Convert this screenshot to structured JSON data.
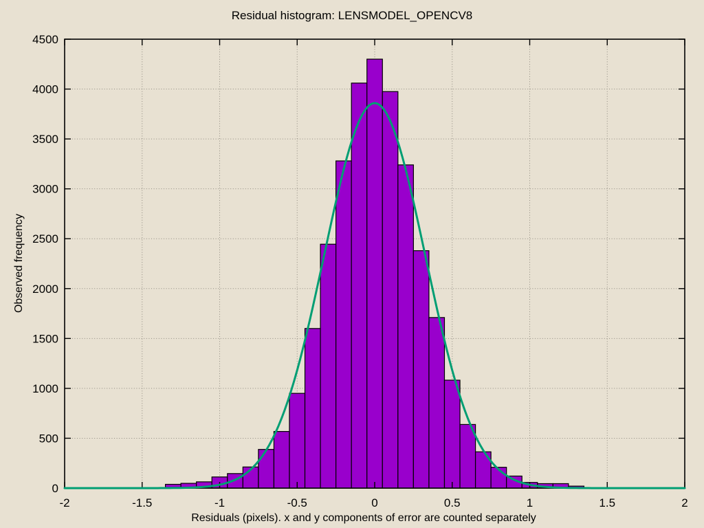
{
  "chart_data": {
    "type": "bar",
    "subtype": "histogram-with-gaussian-fit",
    "title": "Residual histogram: LENSMODEL_OPENCV8",
    "xlabel": "Residuals (pixels). x and y components of error are counted separately",
    "ylabel": "Observed frequency",
    "xlim": [
      -2,
      2
    ],
    "ylim": [
      0,
      4500
    ],
    "grid": true,
    "legend": false,
    "bin_width": 0.1,
    "bin_centers": [
      -1.3,
      -1.2,
      -1.1,
      -1.0,
      -0.9,
      -0.8,
      -0.7,
      -0.6,
      -0.5,
      -0.4,
      -0.3,
      -0.2,
      -0.1,
      0.0,
      0.1,
      0.2,
      0.3,
      0.4,
      0.5,
      0.6,
      0.7,
      0.8,
      0.9,
      1.0,
      1.1,
      1.2,
      1.3
    ],
    "frequencies": [
      38,
      48,
      63,
      112,
      146,
      212,
      388,
      568,
      950,
      1600,
      2445,
      3280,
      4060,
      4300,
      3975,
      3240,
      2380,
      1710,
      1082,
      638,
      364,
      209,
      121,
      57,
      45,
      45,
      20
    ],
    "x_ticks": [
      -2,
      -1.5,
      -1,
      -0.5,
      0,
      0.5,
      1,
      1.5,
      2
    ],
    "x_tick_labels": [
      "-2",
      "-1.5",
      "-1",
      "-0.5",
      "0",
      "0.5",
      "1",
      "1.5",
      "2"
    ],
    "y_ticks": [
      0,
      500,
      1000,
      1500,
      2000,
      2500,
      3000,
      3500,
      4000,
      4500
    ],
    "y_tick_labels": [
      "0",
      "500",
      "1000",
      "1500",
      "2000",
      "2500",
      "3000",
      "3500",
      "4000",
      "4500"
    ],
    "fit_curve": {
      "type": "gaussian",
      "amplitude": 3860,
      "mean": 0,
      "sigma": 0.325
    },
    "colors": {
      "background": "#e8e1d2",
      "bar_fill": "#9900cc",
      "bar_border": "#000000",
      "curve": "#009e73",
      "grid": "#8f8b80",
      "axis": "#000000",
      "text": "#000000"
    }
  }
}
